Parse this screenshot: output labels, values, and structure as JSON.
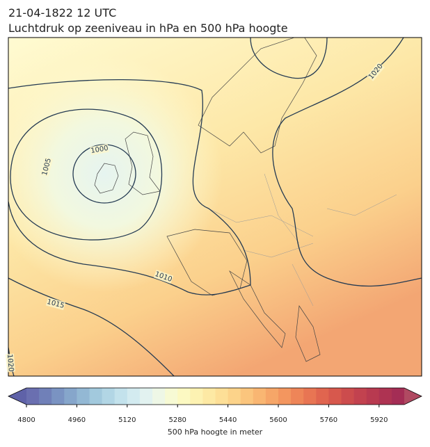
{
  "header": {
    "title": [
      "21-04-1822 12 UTC",
      "Luchtdruk op zeeniveau in hPa en 500 hPa hoogte"
    ]
  },
  "isobars": {
    "labels": [
      1000,
      1005,
      1010,
      1015,
      1020,
      1020
    ]
  },
  "colorbar": {
    "label": "500 hPa hoogte in meter",
    "lim": [
      4800,
      6000
    ],
    "ticks": [
      4800,
      4960,
      5120,
      5280,
      5440,
      5600,
      5760,
      5920
    ],
    "under_color": "#5f62a8",
    "over_color": "#b04a62",
    "colors": [
      "#6a6fb0",
      "#7080b8",
      "#7a93c2",
      "#86a6cb",
      "#93b8d4",
      "#a2c9dd",
      "#b2d6e5",
      "#c3e2ec",
      "#d3ebf0",
      "#e2f2f0",
      "#eef7e6",
      "#f7fad4",
      "#fcf9c2",
      "#fdf2b2",
      "#fde9a4",
      "#fddf97",
      "#fcd38a",
      "#fbc57d",
      "#f9b672",
      "#f6a668",
      "#f3965f",
      "#ee8558",
      "#e87553",
      "#e0654f",
      "#d7584d",
      "#cc4c4d",
      "#c2424f",
      "#b83a50",
      "#ae3352",
      "#a42d55"
    ]
  }
}
